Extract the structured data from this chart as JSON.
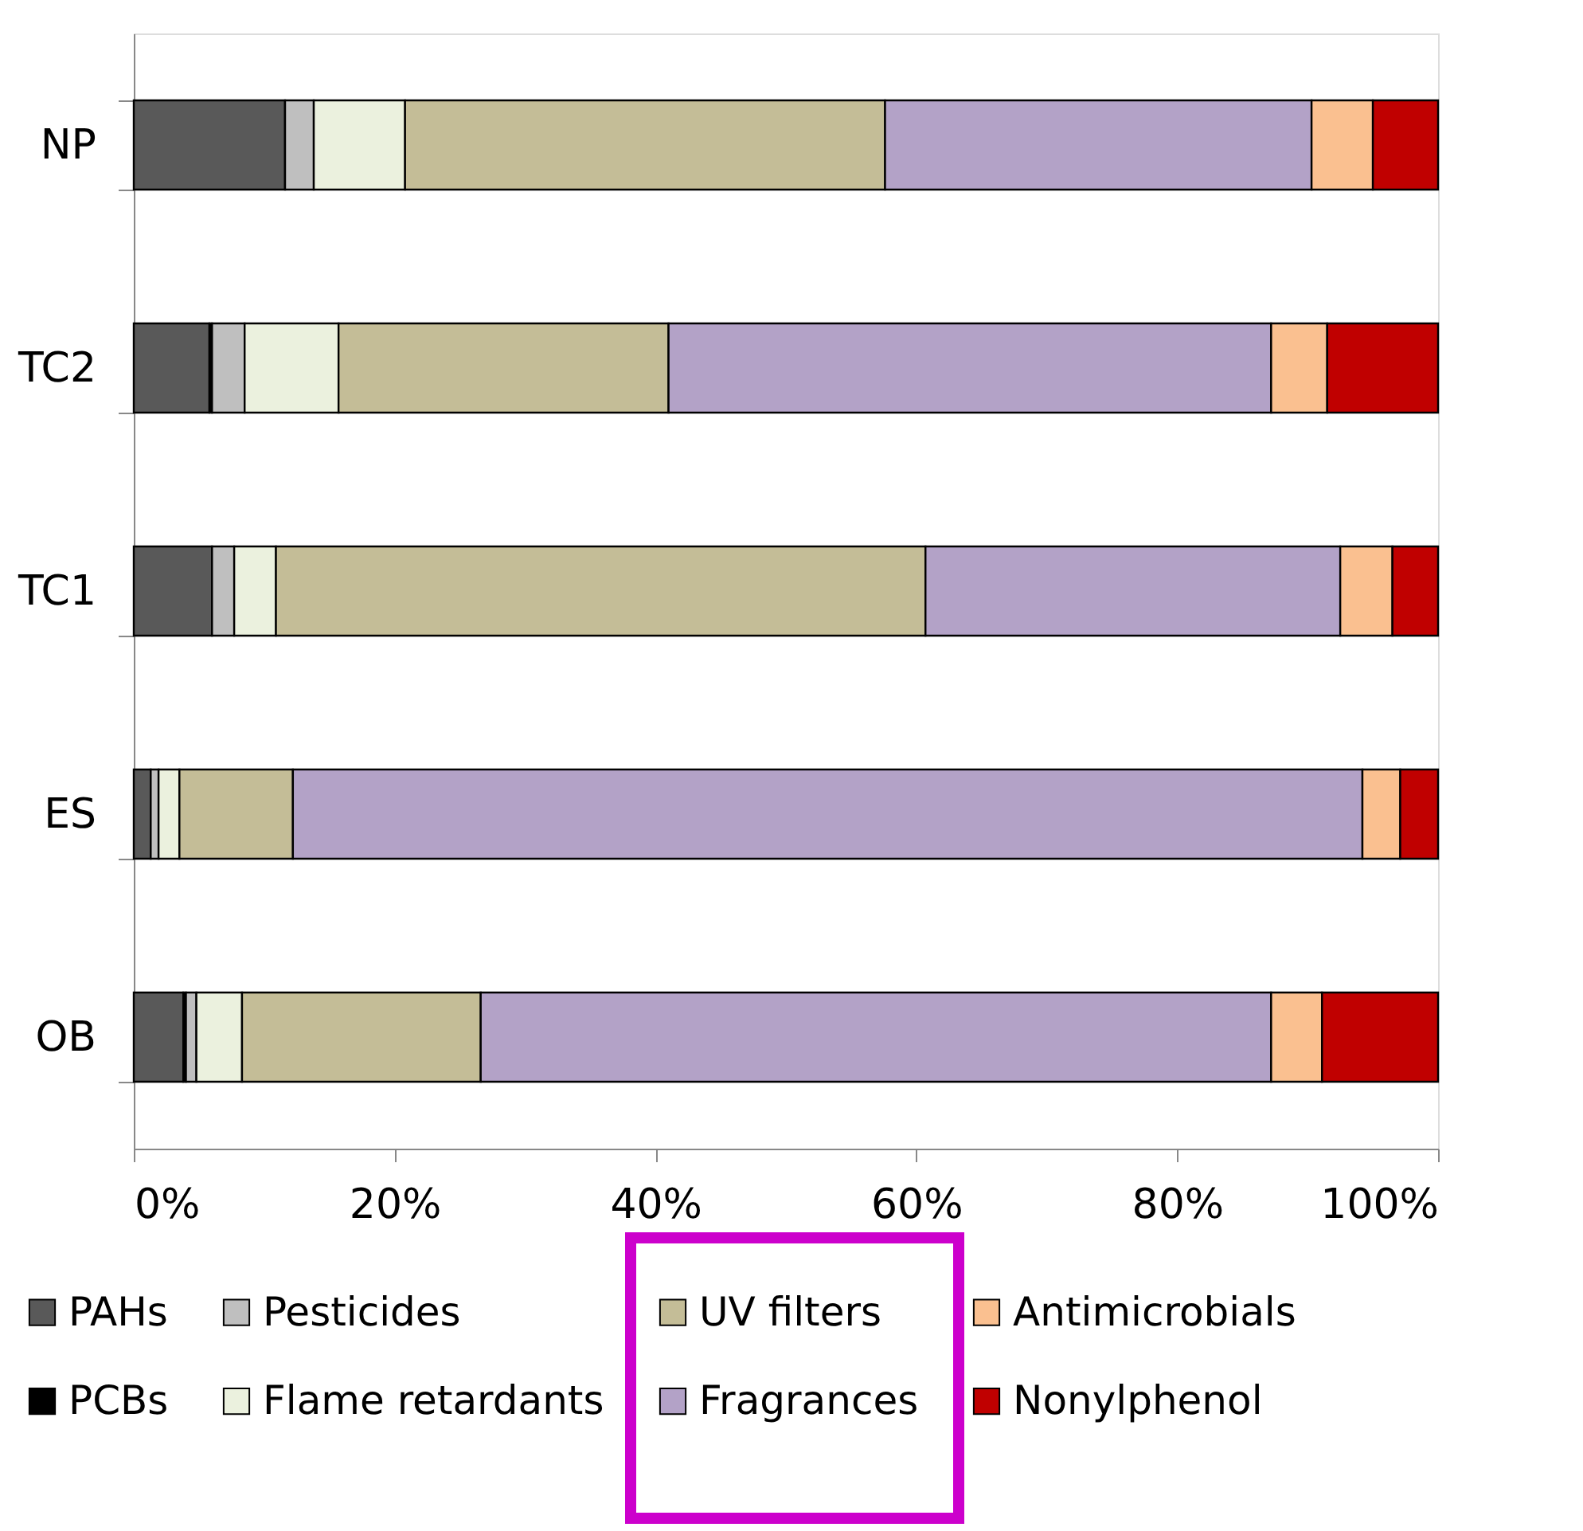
{
  "chart_data": {
    "type": "bar",
    "orientation": "horizontal",
    "stacked": true,
    "categories": [
      "NP",
      "TC2",
      "TC1",
      "ES",
      "OB"
    ],
    "series": [
      {
        "name": "PAHs",
        "color": "#595959",
        "values": [
          11.6,
          5.8,
          6.0,
          1.3,
          3.8
        ]
      },
      {
        "name": "PCBs",
        "color": "#000000",
        "values": [
          0,
          0.2,
          0,
          0,
          0.2
        ]
      },
      {
        "name": "Pesticides",
        "color": "#bfbfbf",
        "values": [
          2.2,
          2.5,
          1.7,
          0.6,
          0.8
        ]
      },
      {
        "name": "Flame retardants",
        "color": "#ebf1de",
        "values": [
          7.0,
          7.2,
          3.2,
          1.6,
          3.5
        ]
      },
      {
        "name": "UV filters",
        "color": "#c4bd97",
        "values": [
          36.8,
          25.3,
          49.8,
          8.7,
          18.3
        ]
      },
      {
        "name": "Fragrances",
        "color": "#b3a2c7",
        "values": [
          32.7,
          46.2,
          31.8,
          82.0,
          60.6
        ]
      },
      {
        "name": "Antimicrobials",
        "color": "#fac090",
        "values": [
          4.7,
          4.3,
          4.0,
          2.9,
          3.9
        ]
      },
      {
        "name": "Nonylphenol",
        "color": "#c00000",
        "values": [
          5.0,
          8.5,
          3.5,
          2.9,
          8.9
        ]
      }
    ],
    "xlim": [
      0,
      100
    ],
    "xticks": [
      {
        "value": 0,
        "label": "0%"
      },
      {
        "value": 20,
        "label": "20%"
      },
      {
        "value": 40,
        "label": "40%"
      },
      {
        "value": 60,
        "label": "60%"
      },
      {
        "value": 80,
        "label": "80%"
      },
      {
        "value": 100,
        "label": "100%"
      }
    ],
    "grid": false,
    "legend": "bottom"
  }
}
